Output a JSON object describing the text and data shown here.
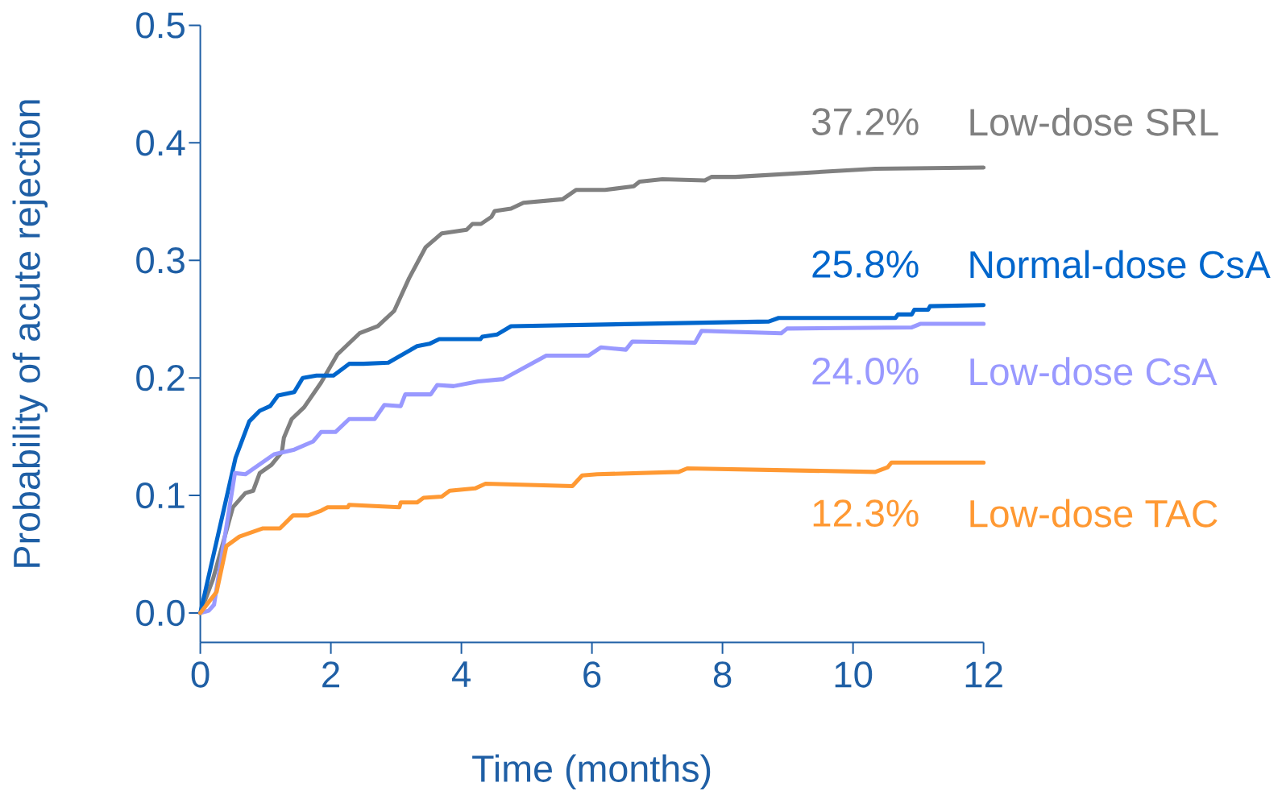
{
  "chart_data": {
    "type": "line",
    "xlabel": "Time (months)",
    "ylabel": "Probability of acute rejection",
    "line_style": "solid",
    "xlim": [
      0,
      12
    ],
    "ylim": [
      -0.025,
      0.5
    ],
    "xticks": [
      0,
      2,
      4,
      6,
      8,
      10,
      12
    ],
    "yticks": [
      {
        "value": 0,
        "label": "0.0"
      },
      0.1,
      0.2,
      0.3,
      0.4,
      0.5
    ],
    "series": [
      {
        "name": "Low-dose SRL",
        "color": "#808080",
        "x": [
          0,
          0.19,
          0.5,
          0.69,
          0.81,
          0.91,
          1.09,
          1.25,
          1.28,
          1.4,
          1.59,
          1.85,
          2.1,
          2.44,
          2.72,
          2.97,
          3.2,
          3.45,
          3.7,
          4.08,
          4.17,
          4.3,
          4.46,
          4.51,
          4.76,
          4.95,
          5.55,
          5.76,
          6.2,
          6.64,
          6.73,
          7.08,
          7.73,
          7.83,
          8.2,
          10.34,
          12
        ],
        "values": [
          0,
          0.028,
          0.09,
          0.102,
          0.104,
          0.119,
          0.126,
          0.137,
          0.149,
          0.165,
          0.175,
          0.196,
          0.22,
          0.238,
          0.244,
          0.257,
          0.285,
          0.311,
          0.323,
          0.326,
          0.331,
          0.331,
          0.337,
          0.342,
          0.344,
          0.349,
          0.352,
          0.36,
          0.36,
          0.363,
          0.367,
          0.369,
          0.368,
          0.371,
          0.371,
          0.378,
          0.379
        ]
      },
      {
        "name": "Normal-dose CsA",
        "color": "#0066cc",
        "x": [
          0,
          0.54,
          0.75,
          0.91,
          1.07,
          1.19,
          1.44,
          1.57,
          1.78,
          2.04,
          2.28,
          2.5,
          2.88,
          3.32,
          3.51,
          3.66,
          4.29,
          4.32,
          4.55,
          4.76,
          8.71,
          8.86,
          10.65,
          10.69,
          10.9,
          10.94,
          11.15,
          11.18,
          12
        ],
        "values": [
          0,
          0.132,
          0.163,
          0.172,
          0.176,
          0.185,
          0.188,
          0.2,
          0.202,
          0.202,
          0.212,
          0.212,
          0.213,
          0.227,
          0.229,
          0.233,
          0.233,
          0.235,
          0.237,
          0.244,
          0.248,
          0.251,
          0.251,
          0.254,
          0.254,
          0.258,
          0.258,
          0.261,
          0.262
        ]
      },
      {
        "name": "Low-dose CsA",
        "color": "#9999ff",
        "x": [
          0,
          0.13,
          0.21,
          0.53,
          0.69,
          1.13,
          1.44,
          1.73,
          1.85,
          2.07,
          2.28,
          2.67,
          2.82,
          3.07,
          3.14,
          3.53,
          3.63,
          3.88,
          4.26,
          4.64,
          5.3,
          5.95,
          6.14,
          6.52,
          6.62,
          7.58,
          7.68,
          8.9,
          8.99,
          10.9,
          11.03,
          12
        ],
        "values": [
          0,
          0.002,
          0.007,
          0.119,
          0.118,
          0.135,
          0.139,
          0.146,
          0.154,
          0.154,
          0.165,
          0.165,
          0.177,
          0.176,
          0.186,
          0.186,
          0.194,
          0.193,
          0.197,
          0.199,
          0.219,
          0.219,
          0.226,
          0.224,
          0.231,
          0.23,
          0.24,
          0.238,
          0.242,
          0.243,
          0.246,
          0.246
        ]
      },
      {
        "name": "Low-dose TAC",
        "color": "#ff9933",
        "x": [
          0,
          0.25,
          0.4,
          0.6,
          0.96,
          1.22,
          1.42,
          1.65,
          1.85,
          1.95,
          2.26,
          2.28,
          3.05,
          3.07,
          3.32,
          3.42,
          3.7,
          3.82,
          4.21,
          4.37,
          5.7,
          5.85,
          6.08,
          7.33,
          7.46,
          10.34,
          10.53,
          10.59,
          12
        ],
        "values": [
          0,
          0.018,
          0.057,
          0.065,
          0.072,
          0.072,
          0.083,
          0.083,
          0.087,
          0.09,
          0.09,
          0.092,
          0.09,
          0.094,
          0.094,
          0.098,
          0.099,
          0.104,
          0.106,
          0.11,
          0.108,
          0.117,
          0.118,
          0.12,
          0.123,
          0.12,
          0.124,
          0.128,
          0.128
        ]
      }
    ],
    "annotations": [
      "37.2%",
      "25.8%",
      "24.0%",
      "12.3%"
    ]
  }
}
